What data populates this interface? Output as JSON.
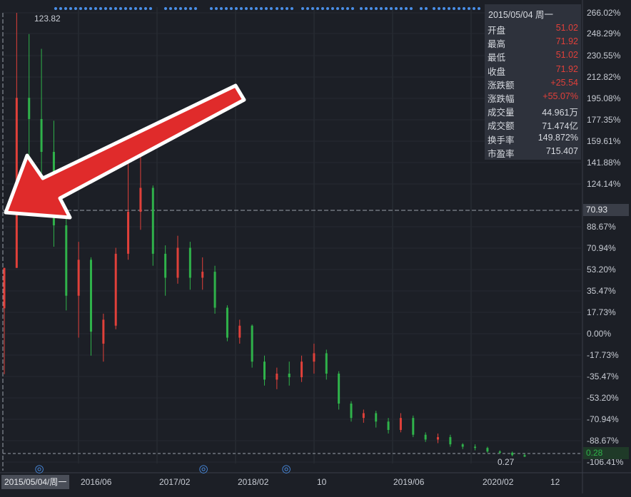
{
  "chart_data": {
    "type": "bar",
    "subtype": "ohlc-candlestick",
    "x_tick_labels": [
      "2016/06",
      "2017/02",
      "2018/02",
      "10",
      "2019/06",
      "2020/02",
      "12"
    ],
    "y_tick_labels": [
      "266.02%",
      "248.29%",
      "230.55%",
      "212.82%",
      "195.08%",
      "177.35%",
      "159.61%",
      "141.88%",
      "124.14%",
      "88.67%",
      "70.94%",
      "53.20%",
      "35.47%",
      "17.73%",
      "0.00%",
      "-17.73%",
      "-35.47%",
      "-53.20%",
      "-70.94%",
      "-88.67%",
      "-106.41%"
    ],
    "ylim": [
      -106.41,
      266.02
    ],
    "y_unit": "%",
    "high_label": "123.82",
    "low_label": "0.27",
    "crosshair_price": "70.93",
    "last_price": "0.28",
    "cursor_date": "2015/05/04/周一",
    "up_color": "#e0403a",
    "down_color": "#2fb24a",
    "marker_color": "#4a8fe8",
    "candles": [
      {
        "date": "2015-05-04",
        "open": 19.5,
        "high": 53.2,
        "low": -35.5,
        "close": 53.2
      },
      {
        "date": "2015-05",
        "open": 53.2,
        "high": 266.0,
        "low": 53.2,
        "close": 195.1
      },
      {
        "date": "2015-05",
        "open": 195.1,
        "high": 248.3,
        "low": 141.9,
        "close": 177.4
      },
      {
        "date": "2015-06",
        "open": 177.4,
        "high": 236.0,
        "low": 106.4,
        "close": 150.0
      },
      {
        "date": "2015-06",
        "open": 150.0,
        "high": 176.0,
        "low": 70.9,
        "close": 88.7
      },
      {
        "date": "2015-07",
        "open": 88.7,
        "high": 100.0,
        "low": 17.7,
        "close": 30.0
      },
      {
        "date": "2015-07",
        "open": 30.0,
        "high": 75.0,
        "low": -5.0,
        "close": 60.0
      },
      {
        "date": "2015-08",
        "open": 60.0,
        "high": 62.0,
        "low": -20.0,
        "close": 0.0
      },
      {
        "date": "2015-09",
        "open": -10.0,
        "high": 15.0,
        "low": -25.0,
        "close": 10.0
      },
      {
        "date": "2015-10",
        "open": 5.0,
        "high": 70.0,
        "low": 2.0,
        "close": 65.0
      },
      {
        "date": "2015-11",
        "open": 65.0,
        "high": 151.0,
        "low": 60.0,
        "close": 100.0
      },
      {
        "date": "2015-12",
        "open": 100.0,
        "high": 167.0,
        "low": 85.0,
        "close": 120.0
      },
      {
        "date": "2016-01",
        "open": 120.0,
        "high": 122.0,
        "low": 55.0,
        "close": 65.0
      },
      {
        "date": "2016-03",
        "open": 65.0,
        "high": 72.0,
        "low": 30.0,
        "close": 45.0
      },
      {
        "date": "2016-05",
        "open": 45.0,
        "high": 80.0,
        "low": 40.0,
        "close": 70.0
      },
      {
        "date": "2016-07",
        "open": 70.0,
        "high": 75.0,
        "low": 35.0,
        "close": 45.0
      },
      {
        "date": "2016-09",
        "open": 45.0,
        "high": 62.0,
        "low": 35.0,
        "close": 50.0
      },
      {
        "date": "2016-10",
        "open": 50.0,
        "high": 55.0,
        "low": 15.0,
        "close": 20.0
      },
      {
        "date": "2016-12",
        "open": 20.0,
        "high": 22.0,
        "low": -8.0,
        "close": -5.0
      },
      {
        "date": "2017-02",
        "open": -5.0,
        "high": 10.0,
        "low": -10.0,
        "close": 5.0
      },
      {
        "date": "2017-04",
        "open": 5.0,
        "high": 6.0,
        "low": -30.0,
        "close": -25.0
      },
      {
        "date": "2017-06",
        "open": -25.0,
        "high": -20.0,
        "low": -45.0,
        "close": -40.0
      },
      {
        "date": "2017-08",
        "open": -40.0,
        "high": -30.0,
        "low": -48.0,
        "close": -35.0
      },
      {
        "date": "2017-10",
        "open": -35.0,
        "high": -25.0,
        "low": -45.0,
        "close": -38.0
      },
      {
        "date": "2017-12",
        "open": -38.0,
        "high": -20.0,
        "low": -42.0,
        "close": -25.0
      },
      {
        "date": "2018-01",
        "open": -25.0,
        "high": -10.0,
        "low": -35.0,
        "close": -18.0
      },
      {
        "date": "2018-03",
        "open": -18.0,
        "high": -15.0,
        "low": -40.0,
        "close": -35.0
      },
      {
        "date": "2018-05",
        "open": -35.0,
        "high": -33.0,
        "low": -65.0,
        "close": -60.0
      },
      {
        "date": "2018-07",
        "open": -60.0,
        "high": -58.0,
        "low": -75.0,
        "close": -72.0
      },
      {
        "date": "2018-09",
        "open": -72.0,
        "high": -65.0,
        "low": -76.0,
        "close": -68.0
      },
      {
        "date": "2018-10",
        "open": -68.0,
        "high": -66.0,
        "low": -80.0,
        "close": -75.0
      },
      {
        "date": "2018-12",
        "open": -75.0,
        "high": -72.0,
        "low": -85.0,
        "close": -82.0
      },
      {
        "date": "2019-02",
        "open": -82.0,
        "high": -68.0,
        "low": -84.0,
        "close": -72.0
      },
      {
        "date": "2019-04",
        "open": -72.0,
        "high": -70.0,
        "low": -88.0,
        "close": -86.0
      },
      {
        "date": "2019-06",
        "open": -86.0,
        "high": -84.0,
        "low": -92.0,
        "close": -90.0
      },
      {
        "date": "2019-08",
        "open": -90.0,
        "high": -85.0,
        "low": -93.0,
        "close": -88.0
      },
      {
        "date": "2019-10",
        "open": -88.0,
        "high": -86.0,
        "low": -96.0,
        "close": -94.0
      },
      {
        "date": "2019-12",
        "open": -94.0,
        "high": -93.0,
        "low": -98.0,
        "close": -96.0
      },
      {
        "date": "2020-02",
        "open": -96.0,
        "high": -94.0,
        "low": -99.0,
        "close": -97.0
      },
      {
        "date": "2020-05",
        "open": -97.0,
        "high": -96.0,
        "low": -101.0,
        "close": -100.0
      },
      {
        "date": "2020-08",
        "open": -100.0,
        "high": -99.0,
        "low": -102.0,
        "close": -101.0
      },
      {
        "date": "2020-10",
        "open": -101.0,
        "high": -100.0,
        "low": -104.0,
        "close": -103.0
      },
      {
        "date": "2020-11",
        "open": -103.0,
        "high": -102.0,
        "low": -104.5,
        "close": -104.3
      }
    ]
  },
  "info_panel": {
    "date": "2015/05/04 周一",
    "rows": [
      {
        "label": "开盘",
        "value": "51.02",
        "color": "up"
      },
      {
        "label": "最高",
        "value": "71.92",
        "color": "up"
      },
      {
        "label": "最低",
        "value": "51.02",
        "color": "up"
      },
      {
        "label": "收盘",
        "value": "71.92",
        "color": "up"
      },
      {
        "label": "涨跌额",
        "value": "+25.54",
        "color": "up"
      },
      {
        "label": "涨跌幅",
        "value": "+55.07%",
        "color": "up"
      },
      {
        "label": "成交量",
        "value": "44.961万",
        "color": "neutral"
      },
      {
        "label": "成交额",
        "value": "71.474亿",
        "color": "neutral"
      },
      {
        "label": "换手率",
        "value": "149.872%",
        "color": "neutral"
      },
      {
        "label": "市盈率",
        "value": "715.407",
        "color": "neutral"
      }
    ]
  },
  "annotations": {
    "arrow": "red-arrow-icon",
    "event_markers": [
      "event-marker-icon",
      "event-marker-icon",
      "event-marker-icon"
    ],
    "event_marker_symbol": "◎"
  }
}
